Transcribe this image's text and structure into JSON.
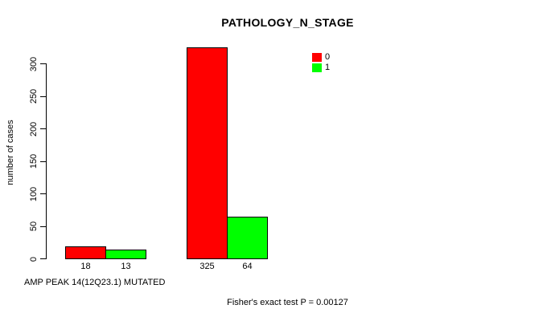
{
  "chart_data": {
    "type": "bar",
    "title": "PATHOLOGY_N_STAGE",
    "ylabel": "number of cases",
    "xlabel": "AMP PEAK 14(12Q23.1) MUTATED",
    "annotation": "Fisher's exact test P = 0.00127",
    "series": [
      {
        "name": "0",
        "color": "#FF0000",
        "values": [
          18,
          325
        ]
      },
      {
        "name": "1",
        "color": "#00FF00",
        "values": [
          13,
          64
        ]
      }
    ],
    "bar_value_labels": [
      [
        "18",
        "325"
      ],
      [
        "13",
        "64"
      ]
    ],
    "yticks": [
      0,
      50,
      100,
      150,
      200,
      250,
      300
    ],
    "ylim": [
      0,
      325
    ],
    "grid": false,
    "legend_position": "top-right",
    "axis_color": "#000000",
    "background_color": "#FFFFFF"
  }
}
